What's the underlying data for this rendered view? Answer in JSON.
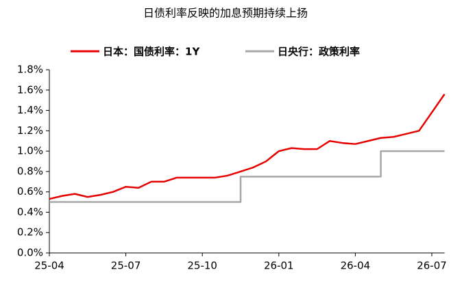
{
  "chart_data": {
    "type": "line",
    "title": "日债利率反映的加息预期持续上扬",
    "categories": [
      "25-04",
      null,
      null,
      null,
      null,
      null,
      "25-07",
      null,
      null,
      null,
      null,
      null,
      "25-10",
      null,
      null,
      null,
      null,
      null,
      "26-01",
      null,
      null,
      null,
      null,
      null,
      "26-04",
      null,
      null,
      null,
      null,
      null,
      "26-07",
      null
    ],
    "series": [
      {
        "name": "日本：国债利率：1Y",
        "color": "#e60000",
        "step": false,
        "values": [
          0.53,
          0.56,
          0.58,
          0.55,
          0.57,
          0.6,
          0.65,
          0.64,
          0.7,
          0.7,
          0.74,
          0.74,
          0.74,
          0.74,
          0.76,
          0.8,
          0.84,
          0.9,
          1.0,
          1.03,
          1.02,
          1.02,
          1.1,
          1.08,
          1.07,
          1.1,
          1.13,
          1.14,
          1.17,
          1.2,
          1.38,
          1.56
        ]
      },
      {
        "name": "日央行：政策利率",
        "color": "#a6a6a6",
        "step": true,
        "values": [
          0.5,
          0.5,
          0.5,
          0.5,
          0.5,
          0.5,
          0.5,
          0.5,
          0.5,
          0.5,
          0.5,
          0.5,
          0.5,
          0.5,
          0.5,
          0.75,
          0.75,
          0.75,
          0.75,
          0.75,
          0.75,
          0.75,
          0.75,
          0.75,
          0.75,
          0.75,
          1.0,
          1.0,
          1.0,
          1.0,
          1.0,
          1.0
        ]
      }
    ],
    "ylim": [
      0,
      1.8
    ],
    "yticks": [
      {
        "value": 0,
        "label": "0.0%"
      },
      {
        "value": 0.2,
        "label": "0.2%"
      },
      {
        "value": 0.4,
        "label": "0.4%"
      },
      {
        "value": 0.6,
        "label": "0.6%"
      },
      {
        "value": 0.8,
        "label": "0.8%"
      },
      {
        "value": 1.0,
        "label": "1.0%"
      },
      {
        "value": 1.2,
        "label": "1.2%"
      },
      {
        "value": 1.4,
        "label": "1.4%"
      },
      {
        "value": 1.6,
        "label": "1.6%"
      },
      {
        "value": 1.8,
        "label": "1.8%"
      }
    ],
    "grid": false
  }
}
